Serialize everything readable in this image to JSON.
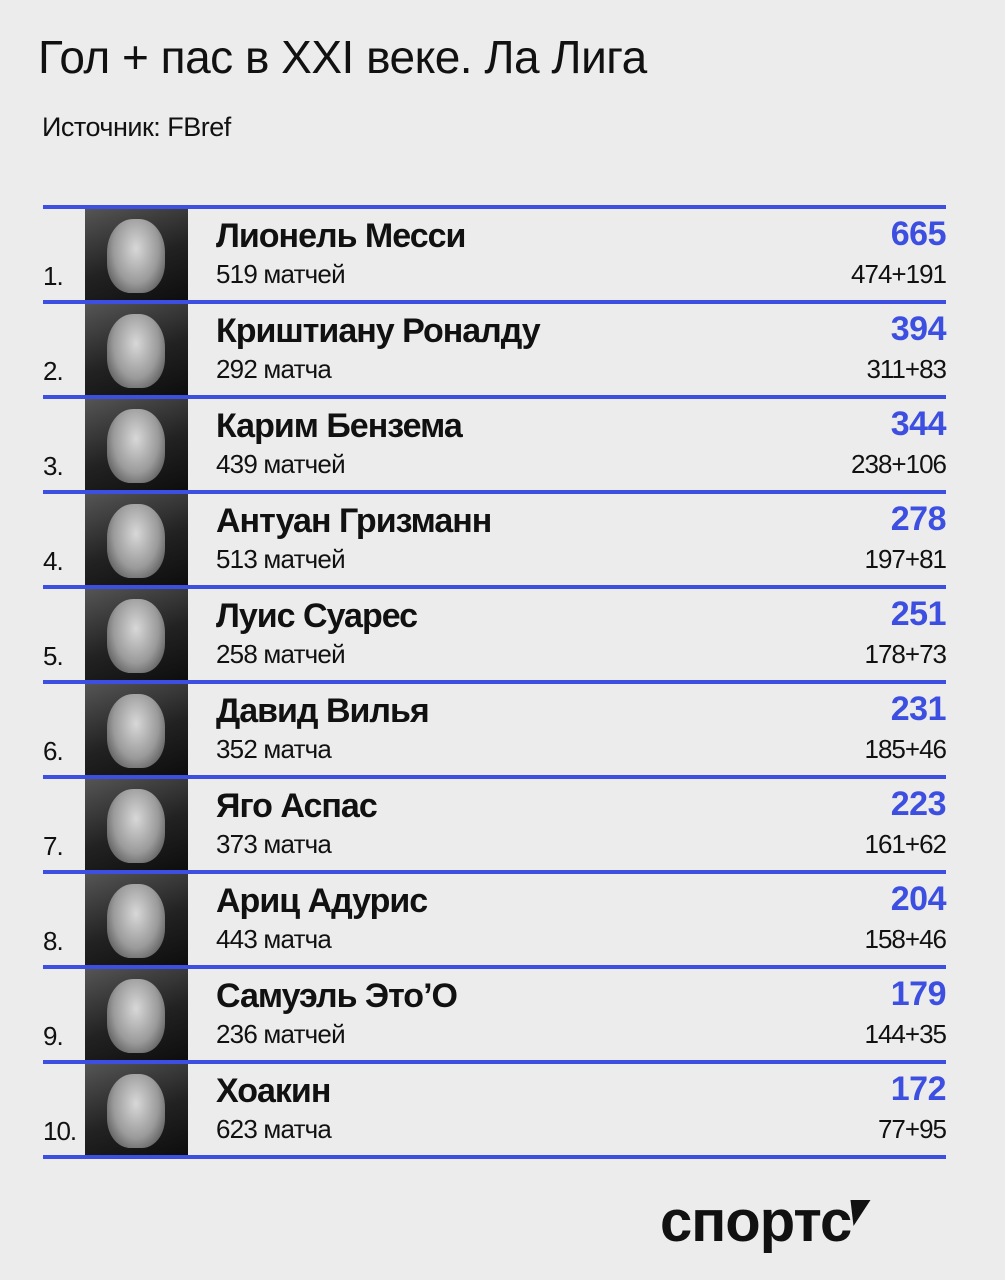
{
  "title": "Гол + пас в XXI веке. Ла Лига",
  "source": "Источник: FBref",
  "accent_color": "#3d4fe0",
  "players": [
    {
      "rank": "1.",
      "name": "Лионель Месси",
      "matches": "519 матчей",
      "total": "665",
      "split": "474+191"
    },
    {
      "rank": "2.",
      "name": "Криштиану Роналду",
      "matches": "292 матча",
      "total": "394",
      "split": "311+83"
    },
    {
      "rank": "3.",
      "name": "Карим Бензема",
      "matches": "439 матчей",
      "total": "344",
      "split": "238+106"
    },
    {
      "rank": "4.",
      "name": "Антуан Гризманн",
      "matches": "513 матчей",
      "total": "278",
      "split": "197+81"
    },
    {
      "rank": "5.",
      "name": "Луис Суарес",
      "matches": "258 матчей",
      "total": "251",
      "split": "178+73"
    },
    {
      "rank": "6.",
      "name": "Давид Вилья",
      "matches": "352 матча",
      "total": "231",
      "split": "185+46"
    },
    {
      "rank": "7.",
      "name": "Яго Аспас",
      "matches": "373 матча",
      "total": "223",
      "split": "161+62"
    },
    {
      "rank": "8.",
      "name": "Ариц Адурис",
      "matches": "443 матча",
      "total": "204",
      "split": "158+46"
    },
    {
      "rank": "9.",
      "name": "Самуэль Это’О",
      "matches": "236 матчей",
      "total": "179",
      "split": "144+35"
    },
    {
      "rank": "10.",
      "name": "Хоакин",
      "matches": "623 матча",
      "total": "172",
      "split": "77+95"
    }
  ],
  "logo": "спортс"
}
